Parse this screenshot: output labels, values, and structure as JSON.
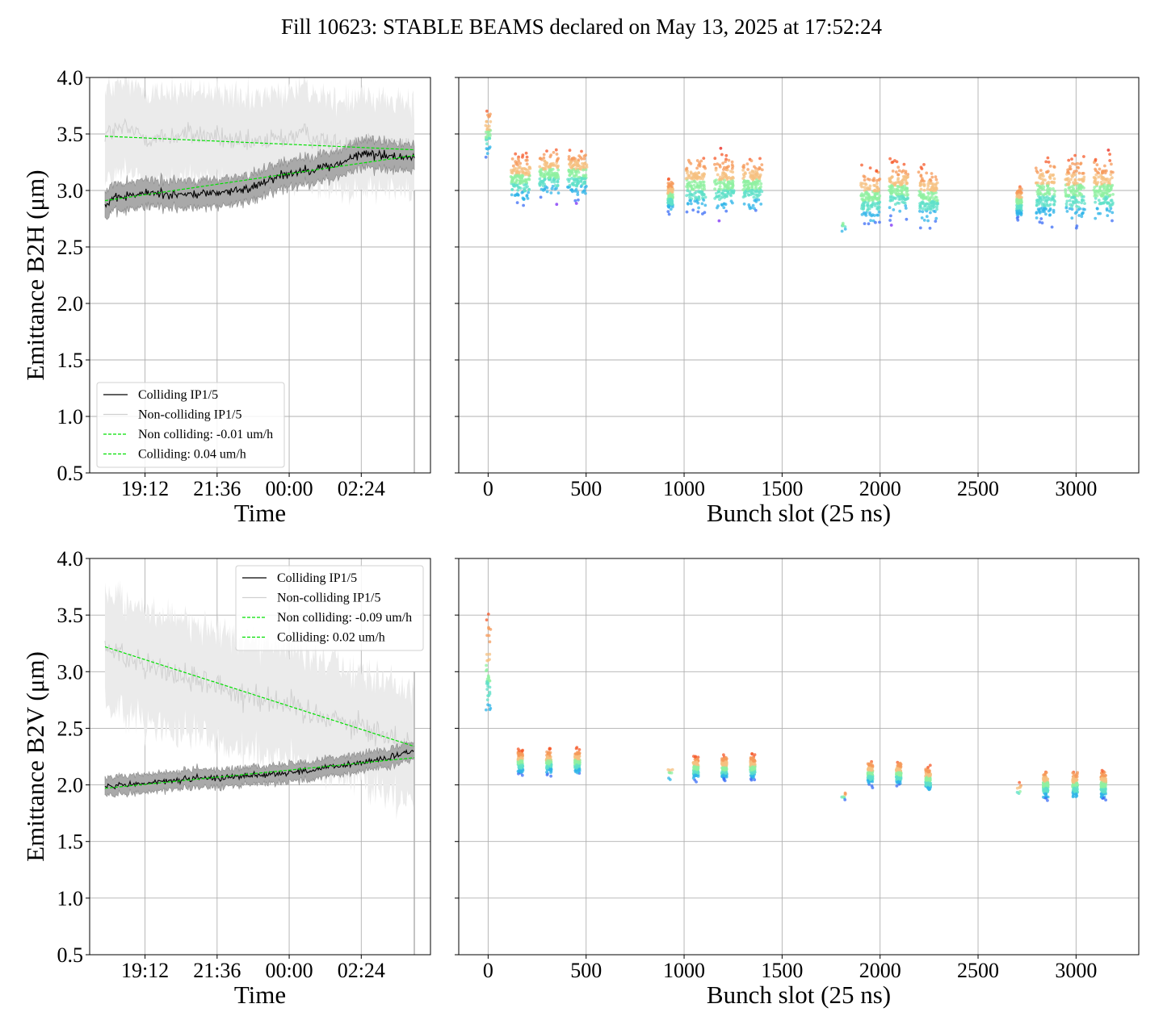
{
  "title": "Fill 10623: STABLE BEAMS declared on May 13, 2025 at 17:52:24",
  "colors": {
    "colliding": "#000000",
    "colliding_band": "#a9a9a9",
    "noncolliding": "#d0d0d0",
    "noncolliding_band": "#ebebeb",
    "fit": "#00e000",
    "grid": "#b0b0b0"
  },
  "chart_data": [
    {
      "type": "line",
      "panel": "top-left",
      "xlabel": "Time",
      "ylabel": "Emittance B2H (μm)",
      "ylim": [
        0.5,
        4.0
      ],
      "yticks": [
        "0.5",
        "1.0",
        "1.5",
        "2.0",
        "2.5",
        "3.0",
        "3.5",
        "4.0"
      ],
      "xticks": [
        "19:12",
        "21:36",
        "00:00",
        "02:24"
      ],
      "grid": true,
      "legend_position": "lower-left",
      "legend": [
        "Colliding IP1/5",
        "Non-colliding IP1/5",
        "Non colliding: -0.01 um/h",
        "Colliding: 0.04 um/h"
      ],
      "series": [
        {
          "name": "Colliding IP1/5",
          "x": [
            "17:52",
            "18:30",
            "19:30",
            "20:30",
            "21:30",
            "22:30",
            "23:30",
            "00:30",
            "01:30",
            "02:30",
            "03:30",
            "04:10"
          ],
          "y": [
            2.88,
            2.95,
            2.98,
            2.96,
            2.98,
            3.0,
            3.12,
            3.18,
            3.22,
            3.33,
            3.3,
            3.3
          ],
          "band": 0.12
        },
        {
          "name": "Non-colliding IP1/5",
          "x": [
            "17:52",
            "18:30",
            "19:30",
            "20:30",
            "21:30",
            "22:30",
            "23:30",
            "00:30",
            "01:30",
            "02:30",
            "03:30",
            "04:10"
          ],
          "y": [
            3.5,
            3.55,
            3.45,
            3.5,
            3.48,
            3.4,
            3.45,
            3.5,
            3.4,
            3.45,
            3.4,
            3.35
          ],
          "band": 0.4
        },
        {
          "name": "Non colliding: -0.01 um/h",
          "x": [
            "17:52",
            "04:10"
          ],
          "y": [
            3.48,
            3.36
          ]
        },
        {
          "name": "Colliding: 0.04 um/h",
          "x": [
            "17:52",
            "04:10"
          ],
          "y": [
            2.91,
            3.31
          ]
        }
      ]
    },
    {
      "type": "scatter",
      "panel": "top-right",
      "xlabel": "Bunch slot (25 ns)",
      "xlim": [
        -150,
        3320
      ],
      "ylim": [
        0.5,
        4.0
      ],
      "xticks": [
        "0",
        "500",
        "1000",
        "1500",
        "2000",
        "2500",
        "3000"
      ],
      "grid": true,
      "trains": [
        {
          "slot": 0,
          "mean": 3.5,
          "spread": 0.3
        },
        {
          "slot": 165,
          "mean": 3.1,
          "spread": 0.3
        },
        {
          "slot": 310,
          "mean": 3.15,
          "spread": 0.3
        },
        {
          "slot": 455,
          "mean": 3.15,
          "spread": 0.3
        },
        {
          "slot": 930,
          "mean": 2.95,
          "spread": 0.2
        },
        {
          "slot": 1060,
          "mean": 3.05,
          "spread": 0.35
        },
        {
          "slot": 1205,
          "mean": 3.05,
          "spread": 0.35
        },
        {
          "slot": 1350,
          "mean": 3.05,
          "spread": 0.35
        },
        {
          "slot": 1815,
          "mean": 2.7,
          "spread": 0.1
        },
        {
          "slot": 1950,
          "mean": 2.95,
          "spread": 0.35
        },
        {
          "slot": 2095,
          "mean": 3.0,
          "spread": 0.35
        },
        {
          "slot": 2245,
          "mean": 2.95,
          "spread": 0.35
        },
        {
          "slot": 2710,
          "mean": 2.9,
          "spread": 0.2
        },
        {
          "slot": 2845,
          "mean": 3.0,
          "spread": 0.4
        },
        {
          "slot": 2995,
          "mean": 3.0,
          "spread": 0.4
        },
        {
          "slot": 3140,
          "mean": 3.0,
          "spread": 0.4
        }
      ]
    },
    {
      "type": "line",
      "panel": "bottom-left",
      "xlabel": "Time",
      "ylabel": "Emittance B2V (μm)",
      "ylim": [
        0.5,
        4.0
      ],
      "yticks": [
        "0.5",
        "1.0",
        "1.5",
        "2.0",
        "2.5",
        "3.0",
        "3.5",
        "4.0"
      ],
      "xticks": [
        "19:12",
        "21:36",
        "00:00",
        "02:24"
      ],
      "grid": true,
      "legend_position": "upper-right",
      "legend": [
        "Colliding IP1/5",
        "Non-colliding IP1/5",
        "Non colliding: -0.09 um/h",
        "Colliding: 0.02 um/h"
      ],
      "series": [
        {
          "name": "Colliding IP1/5",
          "x": [
            "17:52",
            "18:30",
            "19:30",
            "20:30",
            "21:30",
            "22:30",
            "23:30",
            "00:30",
            "01:30",
            "02:30",
            "03:30",
            "04:10"
          ],
          "y": [
            1.98,
            2.0,
            2.02,
            2.05,
            2.06,
            2.08,
            2.1,
            2.12,
            2.16,
            2.2,
            2.25,
            2.3
          ],
          "band": 0.08
        },
        {
          "name": "Non-colliding IP1/5",
          "x": [
            "17:52",
            "18:30",
            "19:30",
            "20:30",
            "21:30",
            "22:30",
            "23:30",
            "00:30",
            "01:30",
            "02:30",
            "03:30",
            "04:10"
          ],
          "y": [
            3.2,
            3.15,
            3.05,
            2.95,
            2.9,
            2.8,
            2.75,
            2.65,
            2.6,
            2.5,
            2.4,
            2.35
          ],
          "band": 0.5
        },
        {
          "name": "Non colliding: -0.09 um/h",
          "x": [
            "17:52",
            "04:10"
          ],
          "y": [
            3.22,
            2.34
          ]
        },
        {
          "name": "Colliding: 0.02 um/h",
          "x": [
            "17:52",
            "04:10"
          ],
          "y": [
            1.97,
            2.24
          ]
        }
      ]
    },
    {
      "type": "scatter",
      "panel": "bottom-right",
      "xlabel": "Bunch slot (25 ns)",
      "xlim": [
        -150,
        3320
      ],
      "ylim": [
        0.5,
        4.0
      ],
      "xticks": [
        "0",
        "500",
        "1000",
        "1500",
        "2000",
        "2500",
        "3000"
      ],
      "grid": true,
      "trains": [
        {
          "slot": 0,
          "mean": 3.0,
          "spread": 0.7
        },
        {
          "slot": 165,
          "mean": 2.2,
          "spread": 0.15
        },
        {
          "slot": 310,
          "mean": 2.2,
          "spread": 0.15
        },
        {
          "slot": 455,
          "mean": 2.2,
          "spread": 0.15
        },
        {
          "slot": 930,
          "mean": 2.1,
          "spread": 0.1
        },
        {
          "slot": 1060,
          "mean": 2.15,
          "spread": 0.15
        },
        {
          "slot": 1205,
          "mean": 2.15,
          "spread": 0.15
        },
        {
          "slot": 1350,
          "mean": 2.15,
          "spread": 0.15
        },
        {
          "slot": 1815,
          "mean": 1.9,
          "spread": 0.05
        },
        {
          "slot": 1950,
          "mean": 2.1,
          "spread": 0.15
        },
        {
          "slot": 2095,
          "mean": 2.1,
          "spread": 0.15
        },
        {
          "slot": 2245,
          "mean": 2.05,
          "spread": 0.15
        },
        {
          "slot": 2710,
          "mean": 1.95,
          "spread": 0.1
        },
        {
          "slot": 2845,
          "mean": 2.0,
          "spread": 0.18
        },
        {
          "slot": 2995,
          "mean": 2.0,
          "spread": 0.18
        },
        {
          "slot": 3140,
          "mean": 2.0,
          "spread": 0.18
        }
      ]
    }
  ]
}
